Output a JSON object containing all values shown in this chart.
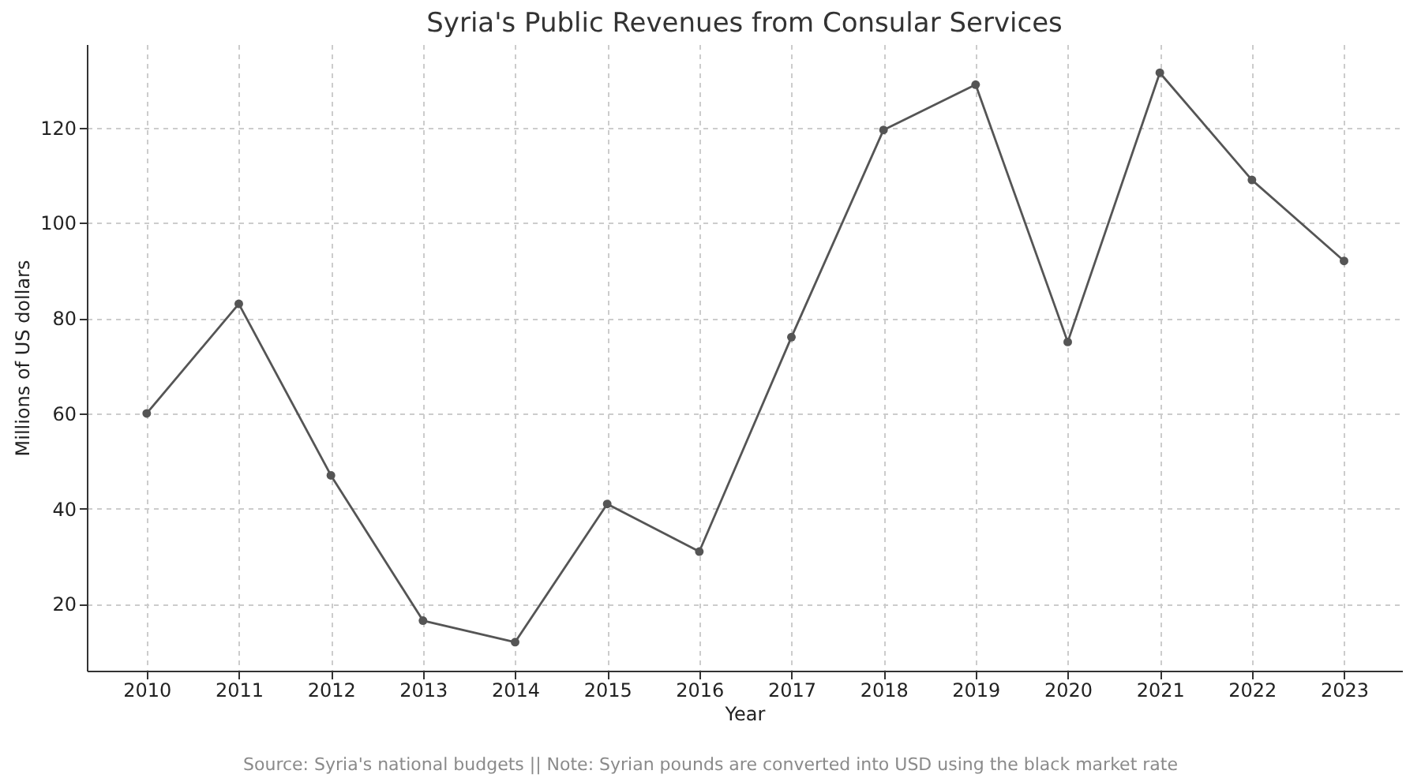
{
  "chart_data": {
    "type": "line",
    "title": "Syria's Public Revenues from Consular Services",
    "xlabel": "Year",
    "ylabel": "Millions of US dollars",
    "x": [
      2010,
      2011,
      2012,
      2013,
      2014,
      2015,
      2016,
      2017,
      2018,
      2019,
      2020,
      2021,
      2022,
      2023
    ],
    "series": [
      {
        "color": "#555555",
        "values": [
          60,
          83,
          47,
          16.5,
          12,
          41,
          31,
          76,
          119.5,
          129,
          75,
          131.5,
          109,
          92
        ]
      }
    ],
    "xlim": [
      2009.35,
      2023.63
    ],
    "xticks": [
      2010,
      2011,
      2012,
      2013,
      2014,
      2015,
      2016,
      2017,
      2018,
      2019,
      2020,
      2021,
      2022,
      2023
    ],
    "ylim": [
      6,
      137.5
    ],
    "yticks": [
      20,
      40,
      60,
      80,
      100,
      120
    ],
    "grid": true,
    "marker": "circle",
    "line_style": "solid",
    "annotations": [
      "Source: Syria's national budgets || Note: Syrian pounds are converted into USD using the black market rate"
    ]
  }
}
